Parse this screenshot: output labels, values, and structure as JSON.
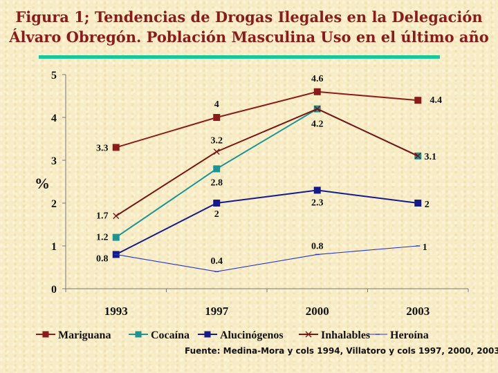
{
  "title_line1": "Figura 1; Tendencias de Drogas Ilegales en  la Delegación",
  "title_line2": "Álvaro Obregón. Población Masculina Uso en el último año",
  "source": "Fuente: Medina-Mora y cols 1994, Villatoro y cols 1997, 2000, 2003",
  "colors": {
    "title": "#8b1a1a",
    "rule": "#16c79a"
  },
  "chart_data": {
    "type": "line",
    "categories": [
      "1993",
      "1997",
      "2000",
      "2003"
    ],
    "ylabel": "%",
    "ylim": [
      0,
      5
    ],
    "yticks": [
      "0",
      "1",
      "2",
      "3",
      "4",
      "5"
    ],
    "grid": false,
    "legend_position": "bottom",
    "series": [
      {
        "name": "Mariguana",
        "color": "#8b1a1a",
        "marker": "square",
        "values": [
          3.3,
          4,
          4.6,
          4.4
        ],
        "labels": [
          "3.3",
          "4",
          "4.6",
          "4.4"
        ]
      },
      {
        "name": "Cocaína",
        "color": "#1a9494",
        "marker": "square",
        "values": [
          1.2,
          2.8,
          4.2,
          3.1
        ],
        "labels": [
          "1.2",
          "2.8",
          "",
          ""
        ]
      },
      {
        "name": "Alucinógenos",
        "color": "#141a8c",
        "marker": "square",
        "values": [
          0.8,
          2,
          2.3,
          2
        ],
        "labels": [
          "0.8",
          "2",
          "2.3",
          "2"
        ]
      },
      {
        "name": "Inhalables",
        "color": "#7a1414",
        "marker": "x",
        "values": [
          1.7,
          3.2,
          4.2,
          3.1
        ],
        "labels": [
          "1.7",
          "3.2",
          "4.2",
          "3.1"
        ]
      },
      {
        "name": "Heroína",
        "color": "#2233cc",
        "marker": "dash",
        "values": [
          0.8,
          0.4,
          0.8,
          1
        ],
        "labels": [
          "",
          "0.4",
          "0.8",
          "1"
        ]
      }
    ]
  }
}
